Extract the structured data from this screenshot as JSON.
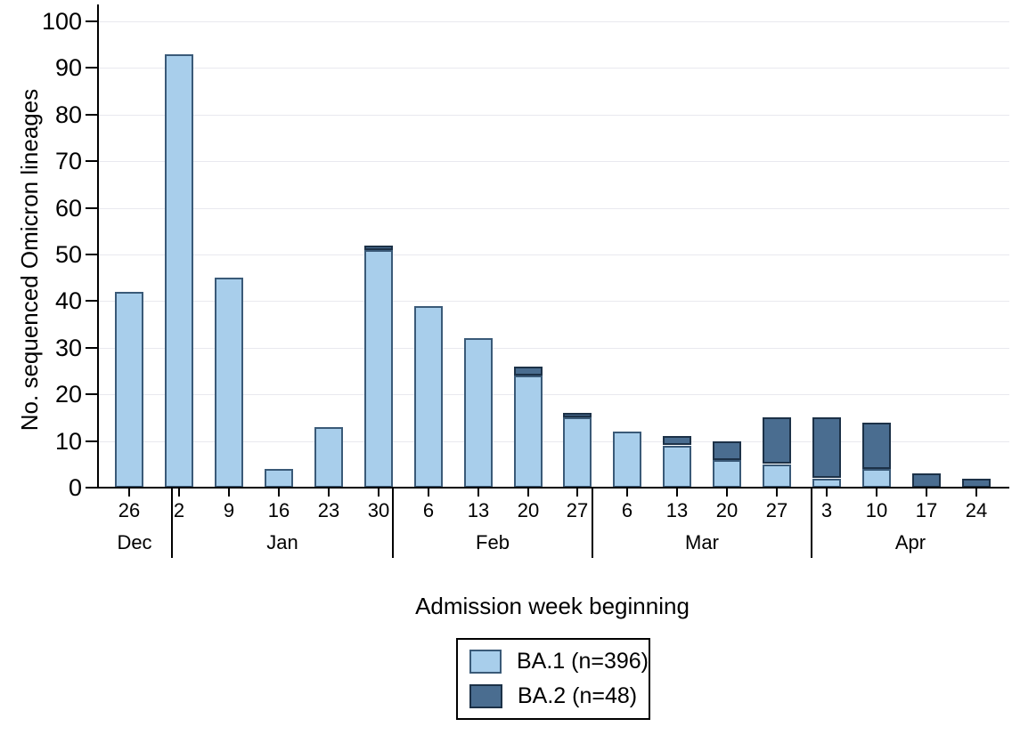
{
  "chart_data": {
    "type": "bar",
    "stacked": true,
    "title": "",
    "ylabel": "No. sequenced Omicron lineages",
    "xlabel": "Admission week beginning",
    "ylim": [
      0,
      100
    ],
    "yticks": [
      0,
      10,
      20,
      30,
      40,
      50,
      60,
      70,
      80,
      90,
      100
    ],
    "grid": "horizontal",
    "legend_position": "bottom-center",
    "categories": [
      "Dec 26",
      "Jan 2",
      "Jan 9",
      "Jan 16",
      "Jan 23",
      "Jan 30",
      "Feb 6",
      "Feb 13",
      "Feb 20",
      "Feb 27",
      "Mar 6",
      "Mar 13",
      "Mar 20",
      "Mar 27",
      "Apr 3",
      "Apr 10",
      "Apr 17",
      "Apr 24"
    ],
    "week_labels": [
      "26",
      "2",
      "9",
      "16",
      "23",
      "30",
      "6",
      "13",
      "20",
      "27",
      "6",
      "13",
      "20",
      "27",
      "3",
      "10",
      "17",
      "24"
    ],
    "month_groups": [
      {
        "label": "Dec",
        "n_weeks": 1
      },
      {
        "label": "Jan",
        "n_weeks": 5
      },
      {
        "label": "Feb",
        "n_weeks": 4
      },
      {
        "label": "Mar",
        "n_weeks": 4
      },
      {
        "label": "Apr",
        "n_weeks": 4
      }
    ],
    "series": [
      {
        "name": "BA.1 (n=396)",
        "color": "#A8CEEB",
        "border_color": "#3A5A78",
        "values": [
          42,
          93,
          45,
          4,
          13,
          51,
          39,
          32,
          24,
          15,
          12,
          9,
          6,
          5,
          2,
          4,
          0,
          0
        ]
      },
      {
        "name": "BA.2 (n=48)",
        "color": "#4A6D90",
        "border_color": "#1C3147",
        "values": [
          0,
          0,
          0,
          0,
          0,
          1,
          0,
          0,
          2,
          1,
          0,
          2,
          4,
          10,
          13,
          10,
          3,
          2
        ]
      }
    ],
    "colors": {
      "axis": "#000000",
      "gridline": "#E9E9EF",
      "background": "#FFFFFF",
      "text": "#000000"
    }
  }
}
